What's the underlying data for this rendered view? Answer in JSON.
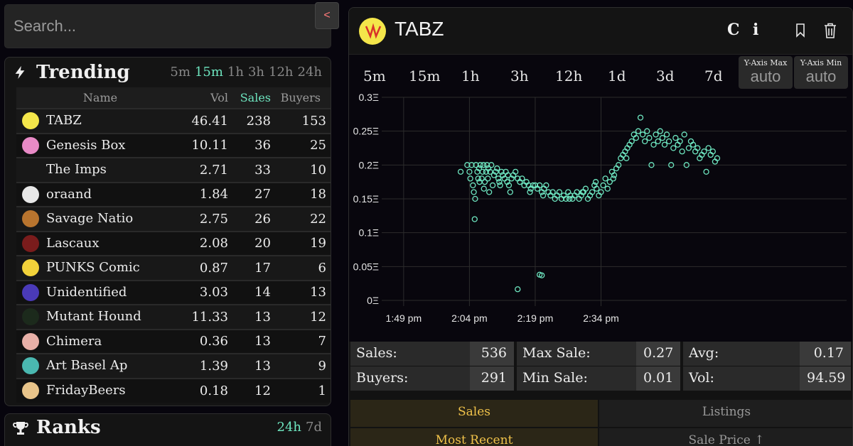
{
  "search": {
    "placeholder": "Search..."
  },
  "collapse_label": "<",
  "trending": {
    "title": "Trending",
    "timeframes": [
      {
        "label": "5m",
        "active": false
      },
      {
        "label": "15m",
        "active": true
      },
      {
        "label": "1h",
        "active": false
      },
      {
        "label": "3h",
        "active": false
      },
      {
        "label": "12h",
        "active": false
      },
      {
        "label": "24h",
        "active": false
      }
    ],
    "columns": [
      "Name",
      "Vol",
      "Sales",
      "Buyers"
    ],
    "rows": [
      {
        "name": "TABZ",
        "vol": "46.41",
        "sales": "238",
        "buyers": "153",
        "color": "#f4e64a"
      },
      {
        "name": "Genesis Box",
        "vol": "10.11",
        "sales": "36",
        "buyers": "25",
        "color": "#e88ac6"
      },
      {
        "name": "The Imps",
        "vol": "2.71",
        "sales": "33",
        "buyers": "10",
        "color": ""
      },
      {
        "name": "oraand",
        "vol": "1.84",
        "sales": "27",
        "buyers": "18",
        "color": "#e8e8e8"
      },
      {
        "name": "Savage Natio",
        "vol": "2.75",
        "sales": "26",
        "buyers": "22",
        "color": "#b8742e"
      },
      {
        "name": "Lascaux",
        "vol": "2.08",
        "sales": "20",
        "buyers": "19",
        "color": "#7a1c1c"
      },
      {
        "name": "PUNKS Comic",
        "vol": "0.87",
        "sales": "17",
        "buyers": "6",
        "color": "#f2d23a"
      },
      {
        "name": "Unidentified",
        "vol": "3.03",
        "sales": "14",
        "buyers": "13",
        "color": "#4a3ab8"
      },
      {
        "name": "Mutant Hound",
        "vol": "11.33",
        "sales": "13",
        "buyers": "12",
        "color": "#1c2a1c"
      },
      {
        "name": "Chimera",
        "vol": "0.36",
        "sales": "13",
        "buyers": "7",
        "color": "#e8b0a8"
      },
      {
        "name": "Art Basel Ap",
        "vol": "1.39",
        "sales": "13",
        "buyers": "9",
        "color": "#4ab8b0"
      },
      {
        "name": "FridayBeers",
        "vol": "0.18",
        "sales": "12",
        "buyers": "1",
        "color": "#e8c48a"
      }
    ]
  },
  "ranks": {
    "title": "Ranks",
    "timeframes": [
      {
        "label": "24h",
        "active": true
      },
      {
        "label": "7d",
        "active": false
      }
    ]
  },
  "collection": {
    "title": "TABZ",
    "buttons": {
      "c": "C",
      "i": "i"
    },
    "timeframes": [
      "5m",
      "15m",
      "1h",
      "3h",
      "12h",
      "1d",
      "3d",
      "7d"
    ],
    "y_axis_max": {
      "label": "Y-Axis Max",
      "value": "auto"
    },
    "y_axis_min": {
      "label": "Y-Axis Min",
      "value": "auto"
    },
    "stats": [
      {
        "key": "Sales:",
        "value": "536"
      },
      {
        "key": "Max Sale:",
        "value": "0.27"
      },
      {
        "key": "Avg:",
        "value": "0.17"
      },
      {
        "key": "Buyers:",
        "value": "291"
      },
      {
        "key": "Min Sale:",
        "value": "0.01"
      },
      {
        "key": "Vol:",
        "value": "94.59"
      }
    ],
    "tabs": [
      {
        "label": "Sales",
        "active": true
      },
      {
        "label": "Listings",
        "active": false
      }
    ],
    "sort_tabs": [
      {
        "label": "Most Recent",
        "active": true
      },
      {
        "label": "Sale Price ↑",
        "active": false
      }
    ]
  },
  "chart_data": {
    "type": "scatter",
    "title": "",
    "xlabel": "",
    "ylabel": "",
    "x_ticks": [
      "1:49 pm",
      "2:04 pm",
      "2:19 pm",
      "2:34 pm"
    ],
    "y_ticks": [
      "0.3Ξ",
      "0.25Ξ",
      "0.2Ξ",
      "0.15Ξ",
      "0.1Ξ",
      "0.05Ξ",
      "0Ξ"
    ],
    "y_tick_values": [
      0.3,
      0.25,
      0.2,
      0.15,
      0.1,
      0.05,
      0
    ],
    "ylim": [
      0,
      0.3
    ],
    "xlim_minutes": [
      44,
      150
    ],
    "x_tick_minutes": [
      49,
      64,
      79,
      94
    ],
    "grid": true,
    "color": "#6ee6c0",
    "points_minutes": [
      [
        62,
        0.19
      ],
      [
        63.5,
        0.2
      ],
      [
        64,
        0.19
      ],
      [
        64.2,
        0.18
      ],
      [
        64.5,
        0.2
      ],
      [
        64.8,
        0.17
      ],
      [
        65,
        0.16
      ],
      [
        65.2,
        0.12
      ],
      [
        65.3,
        0.15
      ],
      [
        65.5,
        0.2
      ],
      [
        65.8,
        0.19
      ],
      [
        66,
        0.18
      ],
      [
        66.2,
        0.195
      ],
      [
        66.5,
        0.2
      ],
      [
        66.8,
        0.18
      ],
      [
        67,
        0.19
      ],
      [
        67.2,
        0.2
      ],
      [
        67.5,
        0.175
      ],
      [
        67.8,
        0.19
      ],
      [
        68,
        0.2
      ],
      [
        68.2,
        0.18
      ],
      [
        68.5,
        0.16
      ],
      [
        68.7,
        0.19
      ],
      [
        69,
        0.2
      ],
      [
        69.3,
        0.17
      ],
      [
        69.6,
        0.185
      ],
      [
        70,
        0.19
      ],
      [
        70.3,
        0.195
      ],
      [
        70.6,
        0.18
      ],
      [
        71,
        0.17
      ],
      [
        71.3,
        0.19
      ],
      [
        71.6,
        0.185
      ],
      [
        72,
        0.18
      ],
      [
        72.3,
        0.19
      ],
      [
        72.6,
        0.175
      ],
      [
        73,
        0.17
      ],
      [
        73.3,
        0.16
      ],
      [
        73.6,
        0.18
      ],
      [
        74,
        0.185
      ],
      [
        74.5,
        0.19
      ],
      [
        75,
        0.18
      ],
      [
        75.5,
        0.175
      ],
      [
        76,
        0.18
      ],
      [
        76.5,
        0.17
      ],
      [
        77,
        0.175
      ],
      [
        77.5,
        0.17
      ],
      [
        78,
        0.165
      ],
      [
        78.5,
        0.17
      ],
      [
        79,
        0.17
      ],
      [
        79.5,
        0.165
      ],
      [
        80,
        0.17
      ],
      [
        80.5,
        0.16
      ],
      [
        81,
        0.165
      ],
      [
        81.5,
        0.17
      ],
      [
        82,
        0.16
      ],
      [
        82.5,
        0.155
      ],
      [
        83,
        0.16
      ],
      [
        83.5,
        0.15
      ],
      [
        84,
        0.155
      ],
      [
        84.5,
        0.16
      ],
      [
        85,
        0.15
      ],
      [
        85.5,
        0.155
      ],
      [
        86,
        0.15
      ],
      [
        86.5,
        0.16
      ],
      [
        87,
        0.155
      ],
      [
        87.5,
        0.15
      ],
      [
        88,
        0.155
      ],
      [
        88.5,
        0.16
      ],
      [
        89,
        0.15
      ],
      [
        89.5,
        0.155
      ],
      [
        90,
        0.16
      ],
      [
        90.5,
        0.165
      ],
      [
        91,
        0.15
      ],
      [
        91.5,
        0.155
      ],
      [
        92,
        0.16
      ],
      [
        92.5,
        0.17
      ],
      [
        93,
        0.165
      ],
      [
        93.5,
        0.155
      ],
      [
        94,
        0.16
      ],
      [
        94.5,
        0.17
      ],
      [
        95,
        0.18
      ],
      [
        95.5,
        0.165
      ],
      [
        96,
        0.175
      ],
      [
        96.5,
        0.19
      ],
      [
        97,
        0.185
      ],
      [
        97.5,
        0.195
      ],
      [
        98,
        0.2
      ],
      [
        98.5,
        0.21
      ],
      [
        99,
        0.215
      ],
      [
        99.5,
        0.22
      ],
      [
        100,
        0.225
      ],
      [
        100.5,
        0.23
      ],
      [
        101,
        0.235
      ],
      [
        101.5,
        0.245
      ],
      [
        102,
        0.24
      ],
      [
        102.5,
        0.25
      ],
      [
        103,
        0.27
      ],
      [
        103.5,
        0.245
      ],
      [
        104,
        0.235
      ],
      [
        104.5,
        0.25
      ],
      [
        105,
        0.24
      ],
      [
        105.5,
        0.2
      ],
      [
        106,
        0.23
      ],
      [
        106.5,
        0.245
      ],
      [
        107,
        0.235
      ],
      [
        107.5,
        0.25
      ],
      [
        108,
        0.24
      ],
      [
        108.5,
        0.23
      ],
      [
        109,
        0.245
      ],
      [
        109.5,
        0.235
      ],
      [
        110,
        0.2
      ],
      [
        110.5,
        0.225
      ],
      [
        111,
        0.24
      ],
      [
        111.5,
        0.23
      ],
      [
        112,
        0.235
      ],
      [
        112.5,
        0.22
      ],
      [
        113,
        0.245
      ],
      [
        113.5,
        0.2
      ],
      [
        114,
        0.225
      ],
      [
        114.5,
        0.235
      ],
      [
        115,
        0.23
      ],
      [
        115.5,
        0.22
      ],
      [
        116,
        0.225
      ],
      [
        116.5,
        0.21
      ],
      [
        117,
        0.215
      ],
      [
        117.5,
        0.22
      ],
      [
        118,
        0.19
      ],
      [
        118.5,
        0.225
      ],
      [
        119,
        0.215
      ],
      [
        119.5,
        0.22
      ],
      [
        120,
        0.205
      ],
      [
        120.5,
        0.21
      ],
      [
        66.3,
        0.175
      ],
      [
        67.3,
        0.165
      ],
      [
        68.3,
        0.195
      ],
      [
        70.8,
        0.175
      ],
      [
        72.8,
        0.185
      ],
      [
        77.8,
        0.16
      ],
      [
        80.8,
        0.155
      ],
      [
        86.8,
        0.15
      ],
      [
        89.8,
        0.16
      ],
      [
        92.8,
        0.175
      ],
      [
        96.8,
        0.18
      ],
      [
        99.8,
        0.21
      ],
      [
        75,
        0.0165
      ],
      [
        80,
        0.038
      ],
      [
        80.5,
        0.037
      ]
    ]
  }
}
